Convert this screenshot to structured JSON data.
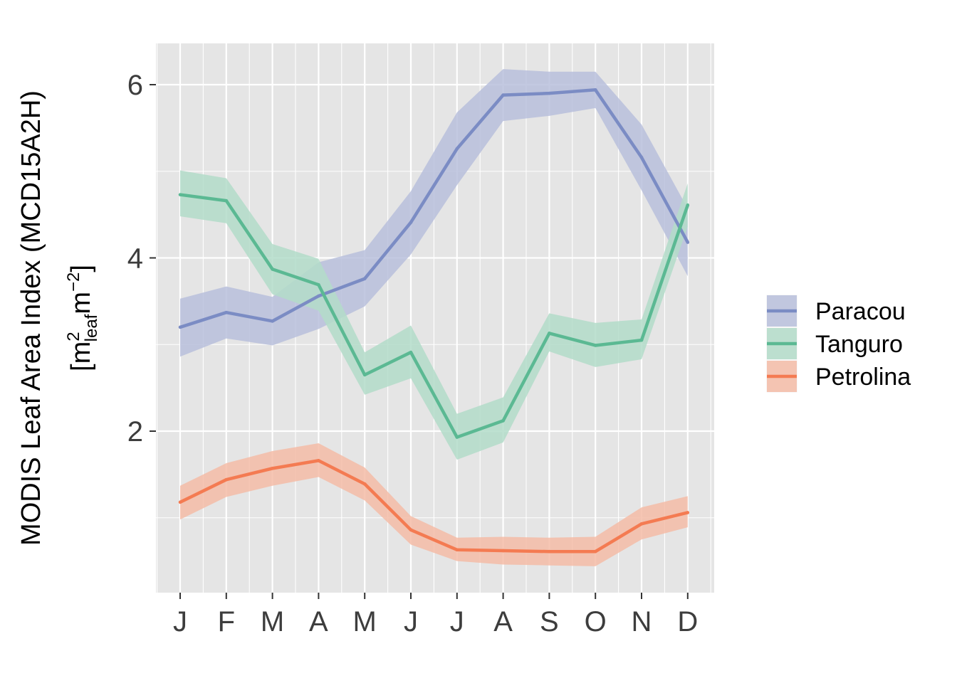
{
  "chart_data": {
    "type": "line",
    "categories": [
      "J",
      "F",
      "M",
      "A",
      "M",
      "J",
      "J",
      "A",
      "S",
      "O",
      "N",
      "D"
    ],
    "ylabel_line1": "MODIS Leaf Area Index (MCD15A2H)",
    "ylabel_unit": {
      "open": "[",
      "m1": "m",
      "sup1": "2",
      "sub1": "leaf",
      "m2": "m",
      "sup2": "−2",
      "close": "]"
    },
    "xlabel": "",
    "ylim": [
      0.2,
      6.48
    ],
    "yticks": [
      2,
      4,
      6
    ],
    "grid": true,
    "legend_position": "right",
    "series": [
      {
        "name": "Paracou",
        "color": "#7b8cc4",
        "fill": "#b9bfdc",
        "values": [
          3.2,
          3.37,
          3.27,
          3.56,
          3.76,
          4.41,
          5.26,
          5.88,
          5.9,
          5.94,
          5.16,
          4.18
        ],
        "lower": [
          2.86,
          3.07,
          2.99,
          3.18,
          3.44,
          4.04,
          4.84,
          5.58,
          5.64,
          5.73,
          4.78,
          3.79
        ],
        "upper": [
          3.53,
          3.67,
          3.55,
          3.95,
          4.09,
          4.77,
          5.68,
          6.18,
          6.15,
          6.15,
          5.54,
          4.57
        ]
      },
      {
        "name": "Tanguro",
        "color": "#5bb993",
        "fill": "#b3dcc9",
        "values": [
          4.73,
          4.66,
          3.87,
          3.69,
          2.65,
          2.91,
          1.93,
          2.12,
          3.13,
          2.99,
          3.05,
          4.61
        ],
        "lower": [
          4.48,
          4.4,
          3.58,
          3.39,
          2.42,
          2.61,
          1.67,
          1.87,
          2.92,
          2.74,
          2.83,
          4.36
        ],
        "upper": [
          5.01,
          4.92,
          4.16,
          3.99,
          2.91,
          3.22,
          2.2,
          2.39,
          3.36,
          3.25,
          3.29,
          4.86
        ]
      },
      {
        "name": "Petrolina",
        "color": "#f47b52",
        "fill": "#f4bca7",
        "values": [
          1.18,
          1.44,
          1.57,
          1.66,
          1.39,
          0.86,
          0.63,
          0.62,
          0.61,
          0.61,
          0.93,
          1.06
        ],
        "lower": [
          0.98,
          1.24,
          1.37,
          1.47,
          1.2,
          0.69,
          0.5,
          0.46,
          0.45,
          0.44,
          0.75,
          0.89
        ],
        "upper": [
          1.37,
          1.63,
          1.77,
          1.86,
          1.58,
          1.02,
          0.77,
          0.78,
          0.77,
          0.78,
          1.12,
          1.25
        ]
      }
    ]
  },
  "style": {
    "panel_background": "#e5e5e5",
    "grid_color": "#ffffff",
    "tick_color": "#333333"
  }
}
